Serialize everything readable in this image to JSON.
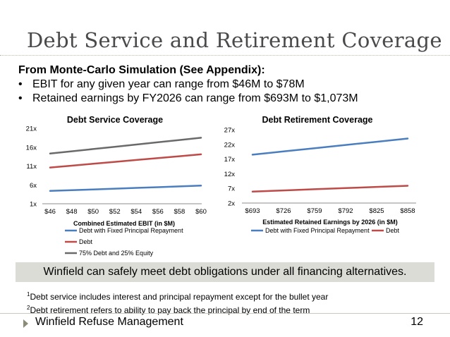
{
  "slide": {
    "title": "Debt Service and Retirement Coverage",
    "intro_lead": "From Monte-Carlo Simulation (See Appendix):",
    "bullets": [
      "EBIT for any given year can range from $46M to $78M",
      "Retained earnings by FY2026 can range from  $693M to $1,073M"
    ],
    "banner": "Winfield can safely meet debt obligations under all financing alternatives.",
    "note1_num": "1",
    "note1": "Debt service includes interest and principal repayment except for the bullet year",
    "note2_num": "2",
    "note2": "Debt retirement refers to ability to pay back the principal by end of the term",
    "footer": "Winfield Refuse Management",
    "page_number": "12"
  },
  "colors": {
    "blue": "#4a7ebf",
    "red": "#be4b48",
    "gray": "#6a6a6a",
    "banner_bg": "#dcdcd6",
    "title": "#4a4a4a"
  },
  "chart_data": [
    {
      "type": "line",
      "title": "Debt Service Coverage",
      "xlabel": "Combined Estimated EBIT (in $M)",
      "ylabel": "",
      "categories": [
        "$46",
        "$48",
        "$50",
        "$52",
        "$54",
        "$56",
        "$58",
        "$60"
      ],
      "yticks": [
        "1x",
        "6x",
        "11x",
        "16x",
        "21x"
      ],
      "ylim": [
        1,
        21
      ],
      "grid": false,
      "legend_position": "bottom",
      "series": [
        {
          "name": "Debt with Fixed Principal Repayment",
          "color": "#4a7ebf",
          "values": [
            4.4,
            4.6,
            4.8,
            5.0,
            5.2,
            5.4,
            5.6,
            5.8
          ]
        },
        {
          "name": "Debt",
          "color": "#be4b48",
          "values": [
            10.6,
            11.1,
            11.6,
            12.1,
            12.6,
            13.1,
            13.6,
            14.1
          ]
        },
        {
          "name": "75% Debt and 25% Equity",
          "color": "#6a6a6a",
          "values": [
            14.3,
            14.9,
            15.5,
            16.1,
            16.7,
            17.3,
            17.9,
            18.5
          ]
        }
      ]
    },
    {
      "type": "line",
      "title": "Debt Retirement Coverage",
      "xlabel": "Estimated Retained Earnings by 2026 (in $M)",
      "ylabel": "",
      "categories": [
        "$693",
        "$726",
        "$759",
        "$792",
        "$825",
        "$858"
      ],
      "yticks": [
        "2x",
        "7x",
        "12x",
        "17x",
        "22x",
        "27x"
      ],
      "ylim": [
        2,
        27
      ],
      "grid": false,
      "legend_position": "bottom",
      "series": [
        {
          "name": "Debt with Fixed Principal Repayment",
          "color": "#4a7ebf",
          "values": [
            18.5,
            19.6,
            20.7,
            21.8,
            22.9,
            24.0
          ]
        },
        {
          "name": "Debt",
          "color": "#be4b48",
          "values": [
            5.9,
            6.3,
            6.7,
            7.1,
            7.5,
            7.9
          ]
        }
      ]
    }
  ]
}
